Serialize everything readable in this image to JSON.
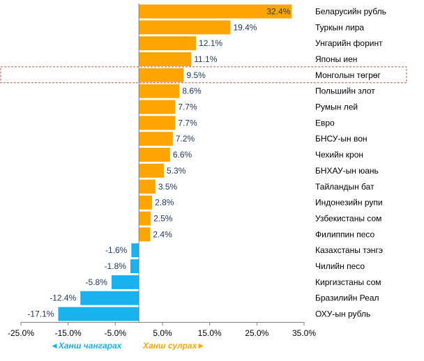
{
  "chart_data": {
    "type": "bar",
    "orientation": "horizontal",
    "categories": [
      "Беларусийн рубль",
      "Туркын лира",
      "Унгарийн форинт",
      "Японы иен",
      "Монголын төгрөг",
      "Польшийн злот",
      "Румын лей",
      "Евро",
      "БНСУ-ын вон",
      "Чехийн крон",
      "БНХАУ-ын юань",
      "Тайландын бат",
      "Индонезийн рупи",
      "Узбекистаны сом",
      "Филиппин песо",
      "Казахстаны тэнгэ",
      "Чилийн песо",
      "Киргизстаны сом",
      "Бразилийн Реал",
      "ОХУ-ын рубль"
    ],
    "values": [
      32.4,
      19.4,
      12.1,
      11.1,
      9.5,
      8.6,
      7.7,
      7.7,
      7.2,
      6.6,
      5.3,
      3.5,
      2.8,
      2.5,
      2.4,
      -1.6,
      -1.8,
      -5.8,
      -12.4,
      -17.1
    ],
    "value_labels": [
      "32.4%",
      "19.4%",
      "12.1%",
      "11.1%",
      "9.5%",
      "8.6%",
      "7.7%",
      "7.7%",
      "7.2%",
      "6.6%",
      "5.3%",
      "3.5%",
      "2.8%",
      "2.5%",
      "2.4%",
      "-1.6%",
      "-1.8%",
      "-5.8%",
      "-12.4%",
      "-17.1%"
    ],
    "xlim": [
      -25,
      35
    ],
    "x_ticks": [
      -25,
      -15,
      -5,
      5,
      15,
      25,
      35
    ],
    "x_tick_labels": [
      "-25.0%",
      "-15.0%",
      "-5.0%",
      "5.0%",
      "15.0%",
      "25.0%",
      "35.0%"
    ],
    "highlighted_category": "Монголын төгрөг",
    "grid": false,
    "colors": {
      "positive": "#ffa500",
      "negative": "#1ab2ee",
      "highlight_box": "#c0504d",
      "value_text": "#1f3864"
    }
  },
  "legend": {
    "negative_label": "◄Ханш чангарах",
    "positive_label": "Ханш сулрах►",
    "negative_color": "#1ab2ee",
    "positive_color": "#ffa500"
  }
}
